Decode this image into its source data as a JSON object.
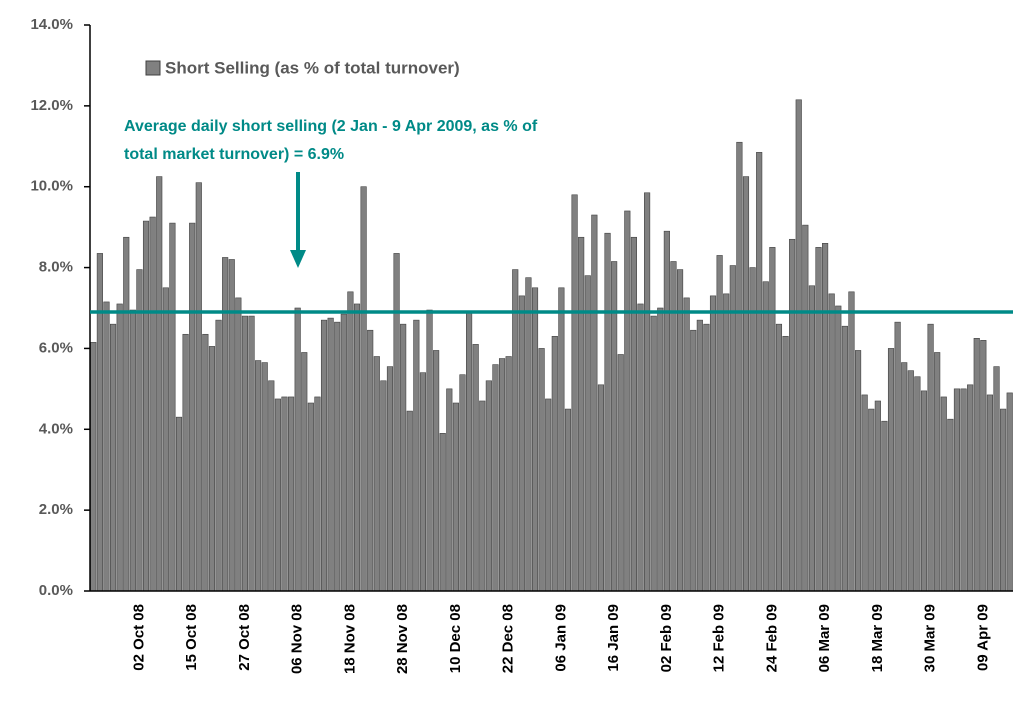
{
  "chart_data": {
    "type": "bar",
    "legend_label": "Short Selling (as % of total turnover)",
    "color": "#808080",
    "annotation": [
      "Average daily short selling (2 Jan - 9 Apr 2009, as % of",
      "total market turnover) = 6.9%"
    ],
    "average_line": {
      "value": 6.9,
      "color": "#008a87"
    },
    "ylim": [
      0,
      14
    ],
    "yticks": [
      {
        "value": 0,
        "label": "0.0%"
      },
      {
        "value": 2,
        "label": "2.0%"
      },
      {
        "value": 4,
        "label": "4.0%"
      },
      {
        "value": 6,
        "label": "6.0%"
      },
      {
        "value": 8,
        "label": "8.0%"
      },
      {
        "value": 10,
        "label": "10.0%"
      },
      {
        "value": 12,
        "label": "12.0%"
      },
      {
        "value": 14,
        "label": "14.0%"
      }
    ],
    "categories": [
      null,
      null,
      null,
      null,
      null,
      null,
      null,
      "02 Oct 08",
      null,
      null,
      null,
      null,
      null,
      null,
      null,
      "15 Oct 08",
      null,
      null,
      null,
      null,
      null,
      null,
      null,
      "27 Oct 08",
      null,
      null,
      null,
      null,
      null,
      null,
      null,
      "06 Nov 08",
      null,
      null,
      null,
      null,
      null,
      null,
      null,
      "18 Nov 08",
      null,
      null,
      null,
      null,
      null,
      null,
      null,
      "28 Nov 08",
      null,
      null,
      null,
      null,
      null,
      null,
      null,
      "10 Dec 08",
      null,
      null,
      null,
      null,
      null,
      null,
      null,
      "22 Dec 08",
      null,
      null,
      null,
      null,
      null,
      null,
      null,
      "06 Jan 09",
      null,
      null,
      null,
      null,
      null,
      null,
      null,
      "16 Jan 09",
      null,
      null,
      null,
      null,
      null,
      null,
      null,
      "02 Feb 09",
      null,
      null,
      null,
      null,
      null,
      null,
      null,
      "12 Feb 09",
      null,
      null,
      null,
      null,
      null,
      null,
      null,
      "24 Feb 09",
      null,
      null,
      null,
      null,
      null,
      null,
      null,
      "06 Mar 09",
      null,
      null,
      null,
      null,
      null,
      null,
      null,
      "18 Mar 09",
      null,
      null,
      null,
      null,
      null,
      null,
      null,
      "30 Mar 09",
      null,
      null,
      null,
      null,
      null,
      null,
      null,
      "09 Apr 09",
      null,
      null,
      null,
      null
    ],
    "values": [
      6.15,
      8.35,
      7.15,
      6.6,
      7.1,
      8.75,
      6.95,
      7.95,
      9.15,
      9.25,
      10.25,
      7.5,
      9.1,
      4.3,
      6.35,
      9.1,
      10.1,
      6.35,
      6.05,
      6.7,
      8.25,
      8.2,
      7.25,
      6.8,
      6.8,
      5.7,
      5.65,
      5.2,
      4.75,
      4.8,
      4.8,
      7.0,
      5.9,
      4.65,
      4.8,
      6.7,
      6.75,
      6.65,
      6.85,
      7.4,
      7.1,
      10.0,
      6.45,
      5.8,
      5.2,
      5.55,
      8.35,
      6.6,
      4.45,
      6.7,
      5.4,
      6.95,
      5.95,
      3.9,
      5.0,
      4.65,
      5.35,
      6.9,
      6.1,
      4.7,
      5.2,
      5.6,
      5.75,
      5.8,
      7.95,
      7.3,
      7.75,
      7.5,
      6.0,
      4.75,
      6.3,
      7.5,
      4.5,
      9.8,
      8.75,
      7.8,
      9.3,
      5.1,
      8.85,
      8.15,
      5.85,
      9.4,
      8.75,
      7.1,
      9.85,
      6.8,
      7.0,
      8.9,
      8.15,
      7.95,
      7.25,
      6.45,
      6.7,
      6.6,
      7.3,
      8.3,
      7.35,
      8.05,
      11.1,
      10.25,
      8.0,
      10.85,
      7.65,
      8.5,
      6.6,
      6.3,
      8.7,
      12.15,
      9.05,
      7.55,
      8.5,
      8.6,
      7.35,
      7.05,
      6.55,
      7.4,
      5.95,
      4.85,
      4.5,
      4.7,
      4.2,
      6.0,
      6.65,
      5.65,
      5.45,
      5.3,
      4.95,
      6.6,
      5.9,
      4.8,
      4.25,
      5.0,
      5.0,
      5.1,
      6.25,
      6.2,
      4.85,
      5.55,
      4.5,
      4.9
    ]
  }
}
